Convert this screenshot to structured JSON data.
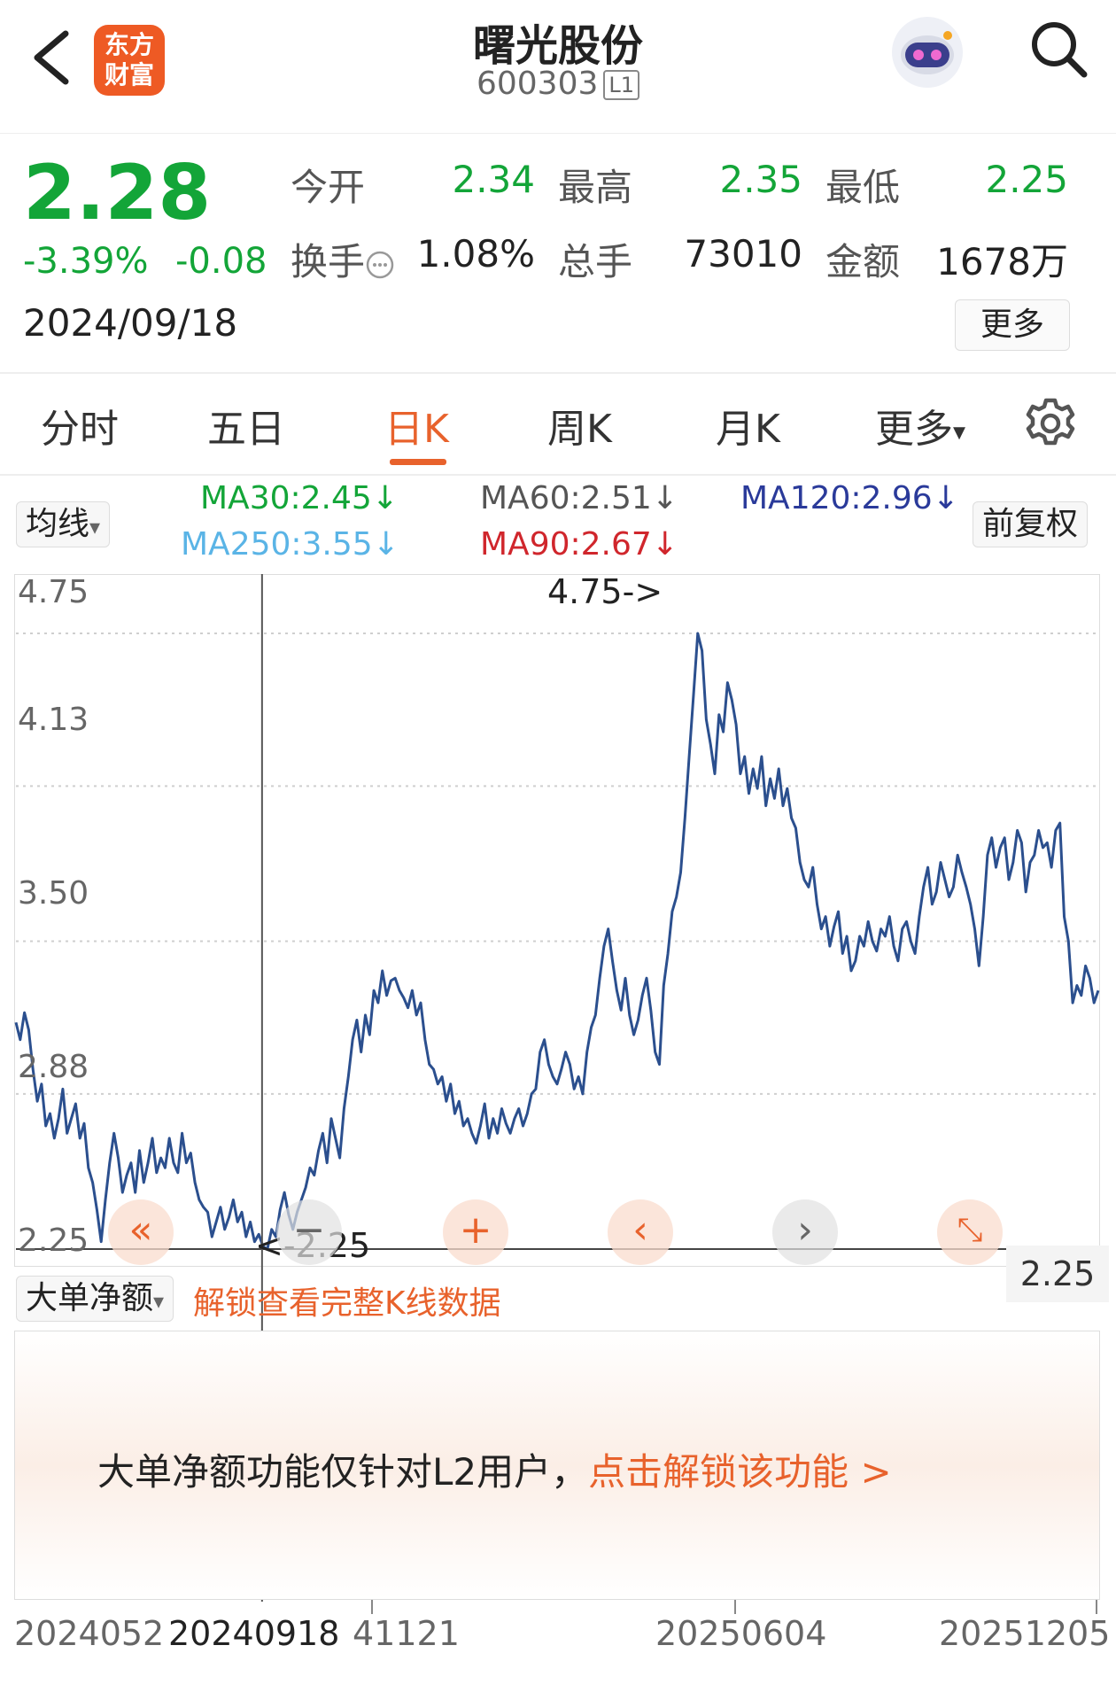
{
  "header": {
    "logo_line1": "东方",
    "logo_line2": "财富",
    "title": "曙光股份",
    "code": "600303",
    "level_badge": "L1",
    "icons": [
      "back-arrow-icon",
      "robot-assistant-icon",
      "search-icon"
    ]
  },
  "quote": {
    "price": "2.28",
    "change_pct": "-3.39%",
    "change_abs": "-0.08",
    "date": "2024/09/18",
    "open_label": "今开",
    "open": "2.34",
    "high_label": "最高",
    "high": "2.35",
    "low_label": "最低",
    "low": "2.25",
    "turnover_label": "换手",
    "turnover": "1.08%",
    "volume_label": "总手",
    "volume": "73010",
    "amount_label": "金额",
    "amount": "1678万",
    "more_label": "更多",
    "colors": {
      "down": "#13a538",
      "accent": "#e8622c"
    }
  },
  "tabs": [
    {
      "label": "分时"
    },
    {
      "label": "五日"
    },
    {
      "label": "日K",
      "active": true
    },
    {
      "label": "周K"
    },
    {
      "label": "月K"
    },
    {
      "label": "更多"
    }
  ],
  "indicators": {
    "selector_label": "均线",
    "adjust_label": "前复权",
    "ma30": "MA30:2.45",
    "ma60": "MA60:2.51",
    "ma120": "MA120:2.96",
    "ma250": "MA250:3.55",
    "ma90": "MA90:2.67",
    "arrow": "↓",
    "ma_colors": {
      "ma30": "#13a538",
      "ma60": "#555555",
      "ma120": "#2a3a9a",
      "ma250": "#5ab4e6",
      "ma90": "#d0262c"
    }
  },
  "chart_data": {
    "type": "line",
    "y_ticks": [
      "4.75",
      "4.13",
      "3.50",
      "2.88",
      "2.25"
    ],
    "ylim": [
      2.25,
      4.75
    ],
    "max_annotation": "4.75->",
    "min_annotation": "<-2.25",
    "crosshair_value": "2.25",
    "x_labels": [
      "2024052",
      "20240918",
      "41121",
      "20250604",
      "20251205"
    ],
    "series": [
      {
        "values": [
          3.17,
          3.1,
          3.21,
          3.14,
          2.98,
          2.85,
          2.92,
          2.75,
          2.8,
          2.7,
          2.78,
          2.9,
          2.72,
          2.78,
          2.84,
          2.7,
          2.76,
          2.58,
          2.52,
          2.41,
          2.28,
          2.45,
          2.6,
          2.72,
          2.62,
          2.48,
          2.55,
          2.6,
          2.48,
          2.65,
          2.52,
          2.6,
          2.7,
          2.56,
          2.62,
          2.58,
          2.7,
          2.6,
          2.56,
          2.72,
          2.6,
          2.64,
          2.52,
          2.45,
          2.42,
          2.4,
          2.3,
          2.36,
          2.42,
          2.33,
          2.38,
          2.45,
          2.36,
          2.4,
          2.3,
          2.36,
          2.28,
          2.31,
          2.26,
          2.25,
          2.33,
          2.3,
          2.41,
          2.48,
          2.39,
          2.33,
          2.4,
          2.45,
          2.5,
          2.58,
          2.55,
          2.65,
          2.72,
          2.6,
          2.78,
          2.7,
          2.62,
          2.82,
          2.95,
          3.1,
          3.18,
          3.05,
          3.2,
          3.12,
          3.3,
          3.25,
          3.38,
          3.28,
          3.34,
          3.35,
          3.3,
          3.27,
          3.23,
          3.3,
          3.2,
          3.25,
          3.1,
          3.0,
          2.98,
          2.92,
          2.95,
          2.85,
          2.92,
          2.8,
          2.85,
          2.75,
          2.78,
          2.72,
          2.68,
          2.75,
          2.84,
          2.7,
          2.78,
          2.72,
          2.82,
          2.76,
          2.72,
          2.78,
          2.82,
          2.75,
          2.8,
          2.88,
          2.9,
          3.05,
          3.1,
          3.0,
          2.95,
          2.92,
          2.98,
          3.05,
          3.0,
          2.9,
          2.95,
          2.88,
          3.05,
          3.15,
          3.2,
          3.35,
          3.48,
          3.55,
          3.42,
          3.3,
          3.22,
          3.35,
          3.2,
          3.12,
          3.18,
          3.28,
          3.35,
          3.22,
          3.05,
          3.0,
          3.32,
          3.45,
          3.62,
          3.68,
          3.78,
          4.0,
          4.25,
          4.5,
          4.75,
          4.68,
          4.4,
          4.3,
          4.18,
          4.42,
          4.35,
          4.55,
          4.48,
          4.38,
          4.18,
          4.25,
          4.1,
          4.2,
          4.12,
          4.25,
          4.05,
          4.16,
          4.08,
          4.2,
          4.05,
          4.12,
          4.0,
          3.96,
          3.82,
          3.75,
          3.72,
          3.8,
          3.65,
          3.55,
          3.6,
          3.48,
          3.56,
          3.62,
          3.45,
          3.52,
          3.38,
          3.42,
          3.52,
          3.48,
          3.58,
          3.5,
          3.46,
          3.55,
          3.52,
          3.6,
          3.48,
          3.42,
          3.55,
          3.58,
          3.5,
          3.45,
          3.6,
          3.72,
          3.8,
          3.65,
          3.7,
          3.82,
          3.75,
          3.68,
          3.72,
          3.85,
          3.78,
          3.72,
          3.65,
          3.55,
          3.4,
          3.6,
          3.85,
          3.92,
          3.8,
          3.88,
          3.92,
          3.75,
          3.82,
          3.95,
          3.9,
          3.7,
          3.82,
          3.85,
          3.95,
          3.88,
          3.9,
          3.8,
          3.95,
          3.98,
          3.6,
          3.5,
          3.25,
          3.32,
          3.28,
          3.4,
          3.35,
          3.25,
          3.3
        ]
      }
    ],
    "grid": "dotted horizontal"
  },
  "controls": {
    "icons": [
      "double-left-icon",
      "zoom-in-icon",
      "zoom-out-icon",
      "prev-icon",
      "next-icon",
      "expand-icon"
    ]
  },
  "lower": {
    "selector_label": "大单净额",
    "unlock_link": "解锁查看完整K线数据",
    "notice": "大单净额功能仅针对L2用户，",
    "notice_link": "点击解锁该功能 >"
  }
}
